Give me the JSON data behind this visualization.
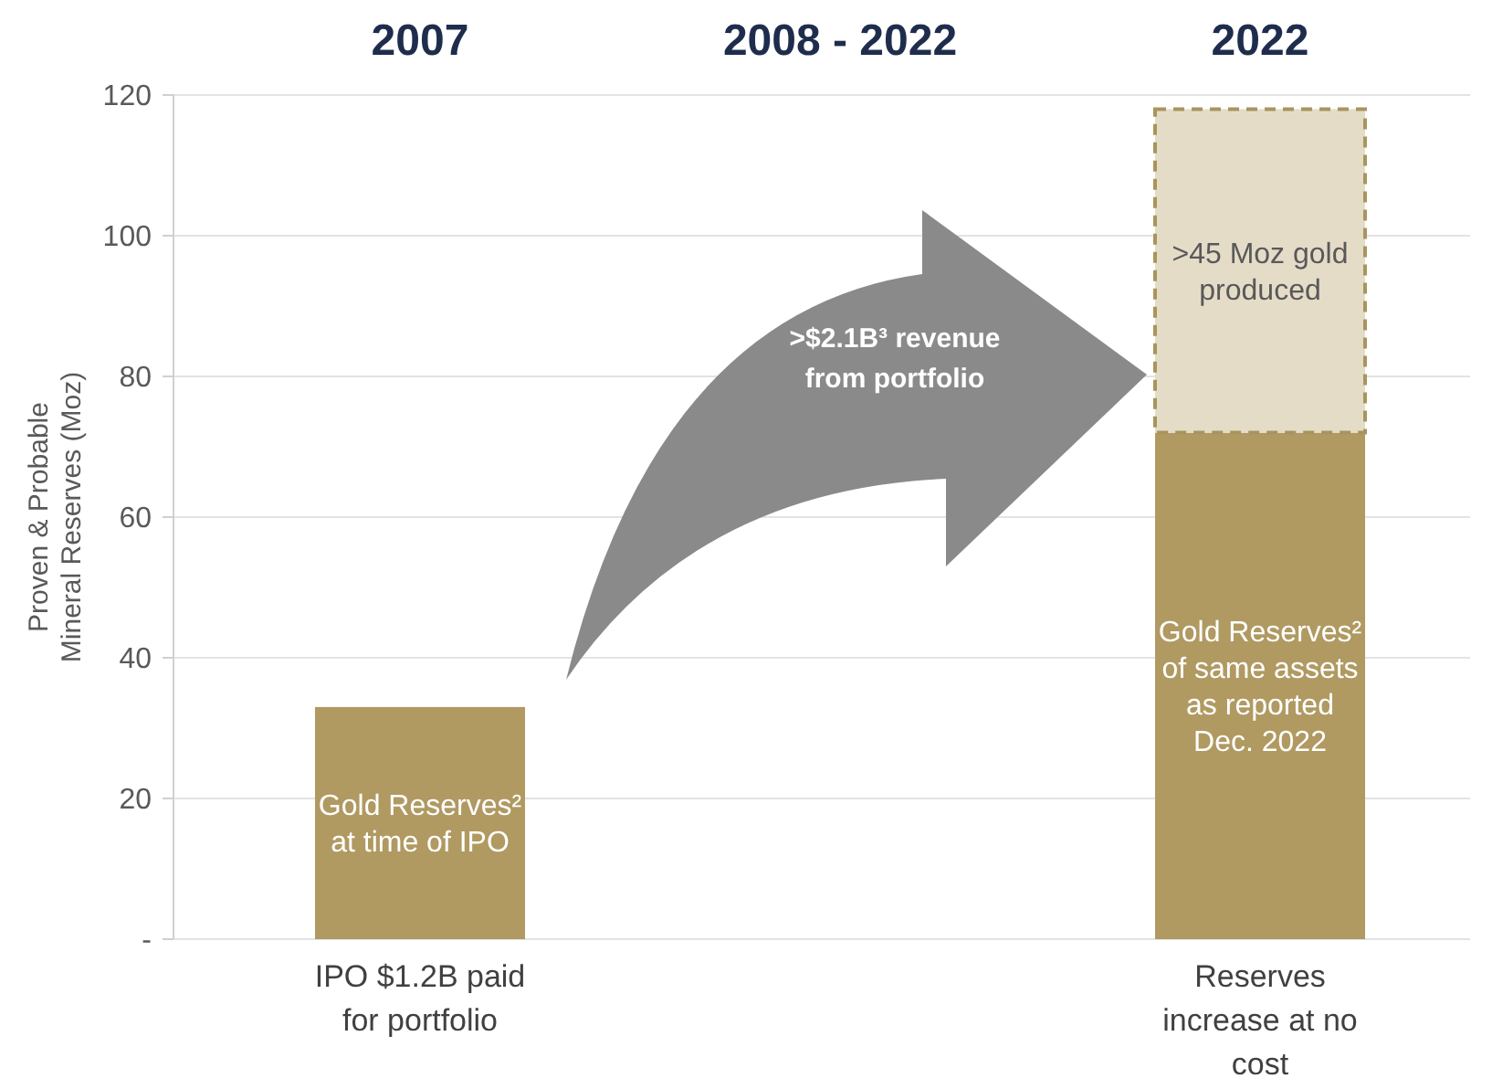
{
  "chart_data": {
    "type": "bar",
    "stacked": true,
    "categories": [
      "2007",
      "2008 - 2022",
      "2022"
    ],
    "ylabel": "Proven & Probable Mineral Reserves (Moz)",
    "ylim": [
      0,
      120
    ],
    "yticks": [
      {
        "value": 0,
        "label": "-"
      },
      20,
      40,
      60,
      80,
      100,
      120
    ],
    "grid": "y",
    "series": [
      {
        "color": "#b09a62",
        "values": [
          33,
          null,
          72
        ],
        "value_labels": [
          "Gold Reserves² at time of IPO",
          null,
          "Gold Reserves² of same assets as reported Dec. 2022"
        ]
      },
      {
        "color": "#e5dcc8",
        "values": [
          null,
          null,
          46
        ],
        "line_style": "dashed",
        "value_labels": [
          null,
          null,
          ">45 Moz gold produced"
        ]
      }
    ],
    "annotations": [
      "IPO $1.2B paid for portfolio",
      "Reserves increase at no cost",
      ">$2.1B³ revenue from portfolio"
    ]
  }
}
